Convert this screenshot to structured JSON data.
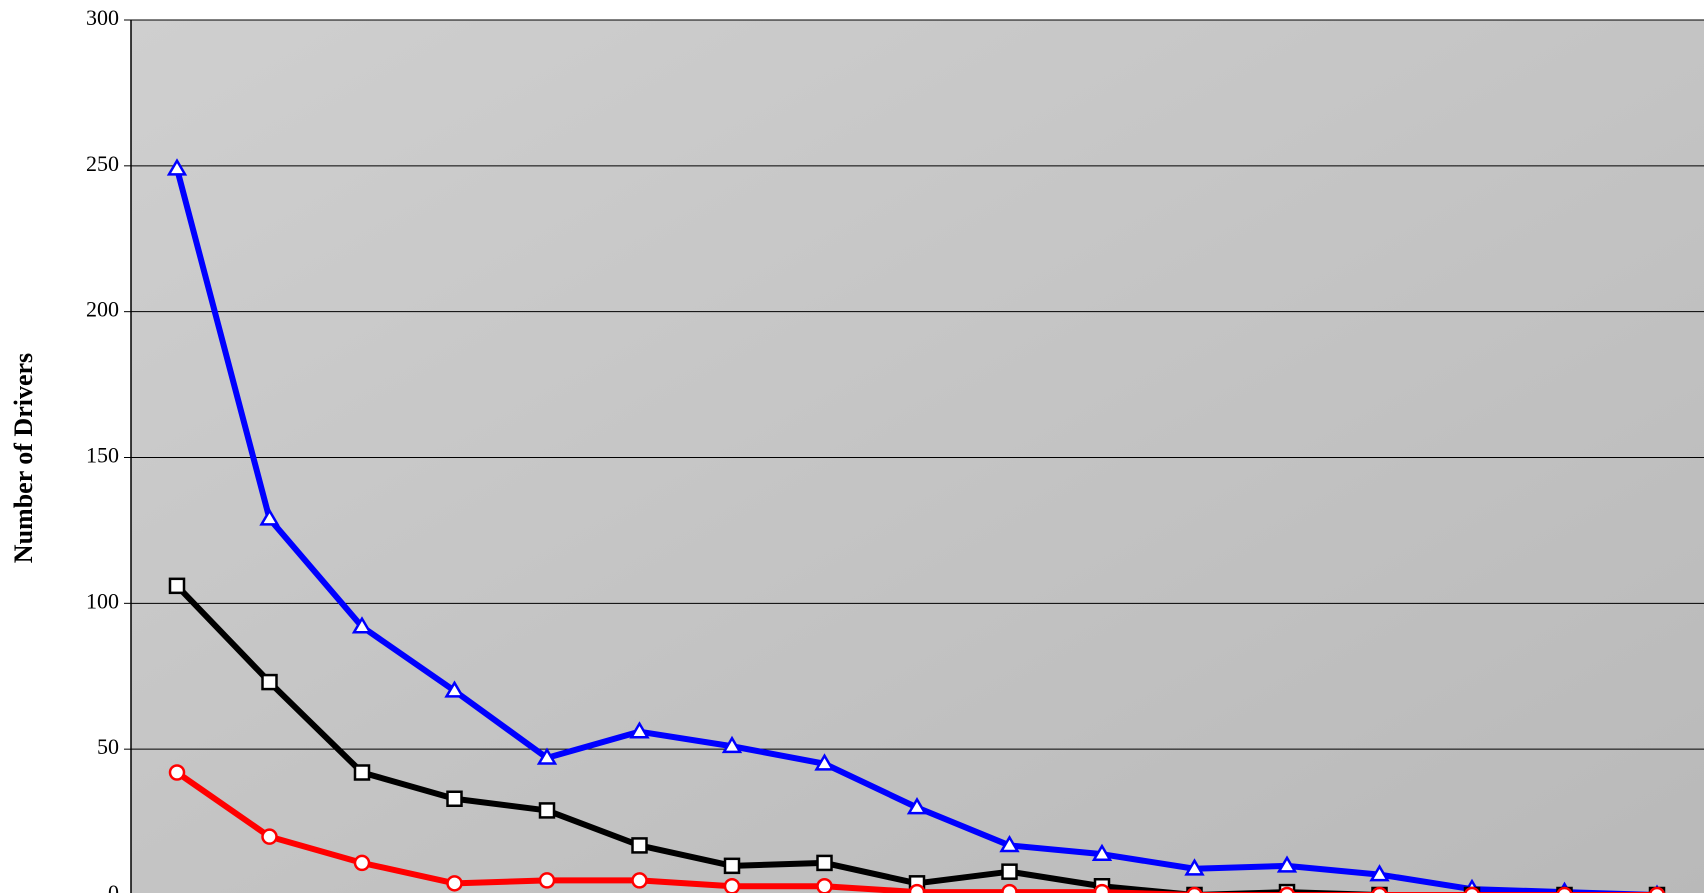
{
  "chart_data": {
    "type": "line",
    "y_label": "Number of Drivers",
    "categories": [
      null,
      null,
      null,
      null,
      null,
      null,
      null,
      null,
      null,
      null,
      null,
      null,
      null,
      null,
      null,
      null,
      null
    ],
    "series": [
      {
        "color": "#0000ff",
        "marker": "triangle",
        "values": [
          249,
          129,
          92,
          70,
          47,
          56,
          51,
          45,
          30,
          17,
          14,
          9,
          10,
          7,
          2,
          1,
          0
        ]
      },
      {
        "color": "#000000",
        "marker": "square",
        "values": [
          106,
          73,
          42,
          33,
          29,
          17,
          10,
          11,
          4,
          8,
          3,
          0,
          1,
          0,
          0,
          0,
          0
        ]
      },
      {
        "color": "#ff0000",
        "marker": "circle",
        "values": [
          42,
          20,
          11,
          4,
          5,
          5,
          3,
          3,
          1,
          1,
          1,
          0,
          0,
          0,
          0,
          0,
          0
        ]
      }
    ],
    "ylim": [
      0,
      300
    ],
    "yticks": [
      0,
      50,
      100,
      150,
      200,
      250,
      300
    ],
    "grid": true
  }
}
